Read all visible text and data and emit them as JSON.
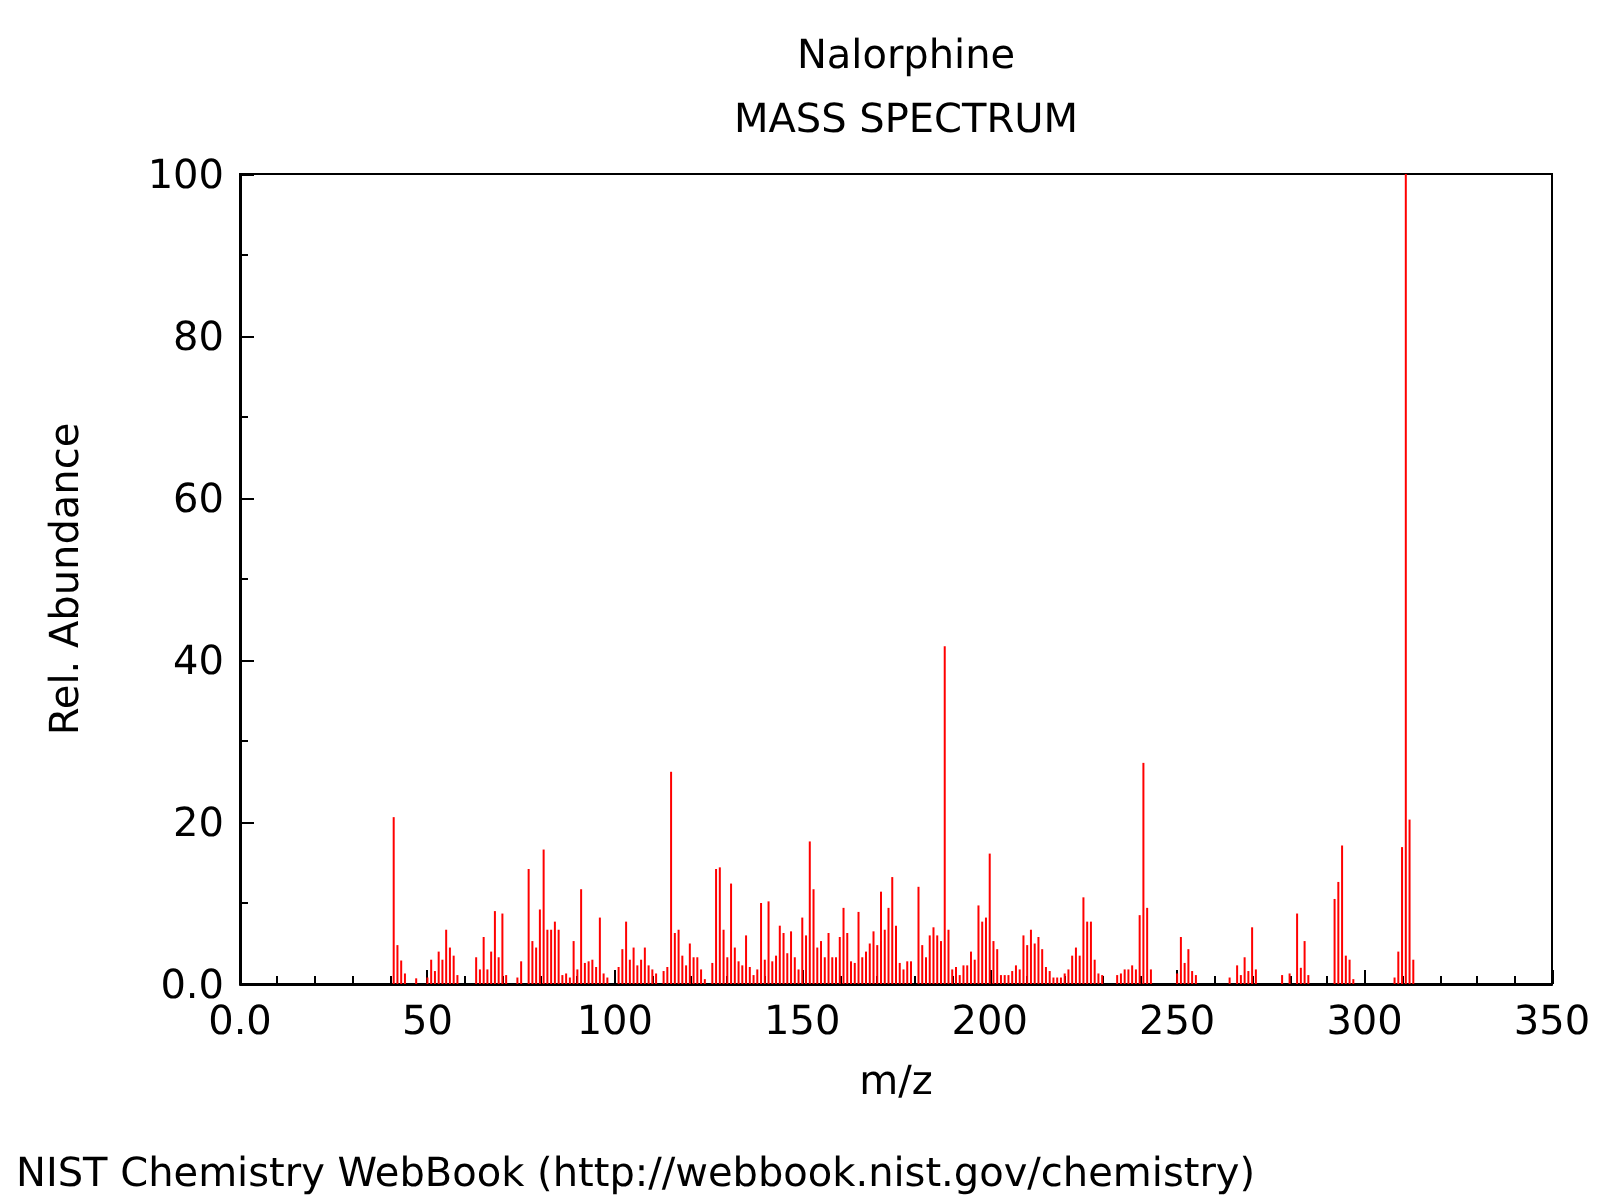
{
  "chart_data": {
    "type": "bar",
    "title": "Nalorphine",
    "subtitle": "MASS SPECTRUM",
    "xlabel": "m/z",
    "ylabel": "Rel. Abundance",
    "annotations": [
      "NIST Chemistry WebBook (http://webbook.nist.gov/chemistry)"
    ],
    "xlim": [
      0,
      350
    ],
    "xticks": [
      {
        "value": 0,
        "label": "0.0"
      },
      50,
      100,
      150,
      200,
      250,
      300,
      350
    ],
    "ylim": [
      0,
      100
    ],
    "yticks": [
      {
        "value": 0,
        "label": "0.0"
      },
      20,
      40,
      60,
      80,
      100
    ],
    "grid": false,
    "x": [
      41,
      42,
      43,
      44,
      47,
      50,
      51,
      52,
      53,
      54,
      55,
      56,
      57,
      58,
      63,
      64,
      65,
      66,
      67,
      68,
      69,
      70,
      71,
      74,
      75,
      77,
      78,
      79,
      80,
      81,
      82,
      83,
      84,
      85,
      86,
      87,
      88,
      89,
      90,
      91,
      92,
      93,
      94,
      95,
      96,
      97,
      98,
      101,
      102,
      103,
      104,
      105,
      106,
      107,
      108,
      109,
      110,
      111,
      113,
      114,
      115,
      116,
      117,
      118,
      119,
      120,
      121,
      122,
      123,
      124,
      126,
      127,
      128,
      129,
      130,
      131,
      132,
      133,
      134,
      135,
      136,
      137,
      138,
      139,
      140,
      141,
      142,
      143,
      144,
      145,
      146,
      147,
      148,
      149,
      150,
      151,
      152,
      153,
      154,
      155,
      156,
      157,
      158,
      159,
      160,
      161,
      162,
      163,
      164,
      165,
      166,
      167,
      168,
      169,
      170,
      171,
      172,
      173,
      174,
      175,
      176,
      177,
      178,
      179,
      181,
      182,
      183,
      184,
      185,
      186,
      187,
      188,
      189,
      190,
      191,
      192,
      193,
      194,
      195,
      196,
      197,
      198,
      199,
      200,
      201,
      202,
      203,
      204,
      205,
      206,
      207,
      208,
      209,
      210,
      211,
      212,
      213,
      214,
      215,
      216,
      217,
      218,
      219,
      220,
      221,
      222,
      223,
      224,
      225,
      226,
      227,
      228,
      229,
      230,
      234,
      235,
      236,
      237,
      238,
      239,
      240,
      241,
      242,
      243,
      250,
      251,
      252,
      253,
      254,
      255,
      264,
      266,
      267,
      268,
      269,
      270,
      271,
      278,
      280,
      282,
      283,
      284,
      285,
      292,
      293,
      294,
      295,
      296,
      297,
      308,
      309,
      310,
      311,
      312,
      313
    ],
    "series": [
      {
        "color": "#ff0000",
        "values": [
          20.6,
          4.8,
          2.9,
          1.3,
          0.7,
          0.8,
          3.0,
          1.6,
          4.0,
          3.0,
          6.7,
          4.5,
          3.5,
          1.1,
          3.3,
          1.8,
          5.8,
          1.8,
          4.0,
          9.0,
          3.3,
          8.7,
          1.1,
          0.8,
          2.8,
          14.2,
          5.3,
          4.5,
          9.2,
          16.6,
          6.7,
          6.7,
          7.7,
          6.7,
          1.1,
          1.3,
          0.8,
          5.3,
          1.8,
          11.7,
          2.6,
          2.8,
          3.0,
          2.1,
          8.2,
          1.3,
          0.8,
          2.1,
          4.3,
          7.7,
          3.0,
          4.5,
          2.3,
          3.0,
          4.5,
          2.3,
          1.8,
          1.3,
          1.6,
          2.1,
          26.2,
          6.3,
          6.7,
          3.5,
          2.3,
          5.0,
          3.3,
          3.3,
          1.8,
          0.6,
          2.6,
          14.2,
          14.4,
          6.7,
          3.3,
          12.4,
          4.5,
          2.8,
          2.3,
          6.0,
          2.1,
          1.1,
          1.8,
          10.0,
          3.0,
          10.2,
          2.8,
          3.5,
          7.2,
          6.3,
          3.8,
          6.5,
          3.3,
          1.8,
          8.2,
          6.0,
          17.6,
          11.7,
          4.5,
          5.3,
          3.3,
          6.3,
          3.3,
          3.3,
          5.8,
          9.4,
          6.3,
          2.8,
          2.6,
          8.9,
          3.3,
          4.0,
          5.0,
          6.5,
          4.8,
          11.4,
          6.7,
          9.4,
          13.2,
          7.2,
          2.6,
          1.8,
          2.8,
          2.8,
          12.0,
          4.8,
          3.3,
          6.0,
          7.0,
          6.0,
          5.3,
          41.7,
          6.7,
          1.8,
          2.1,
          1.1,
          2.3,
          2.3,
          4.0,
          3.0,
          9.7,
          7.7,
          8.2,
          16.1,
          5.3,
          4.3,
          1.1,
          1.1,
          1.1,
          1.6,
          2.3,
          1.8,
          6.0,
          4.8,
          6.7,
          5.0,
          5.8,
          4.3,
          2.1,
          1.6,
          0.8,
          0.8,
          0.8,
          1.3,
          1.8,
          3.5,
          4.5,
          3.5,
          10.7,
          7.7,
          7.7,
          3.0,
          1.3,
          1.1,
          1.1,
          1.3,
          1.8,
          1.8,
          2.3,
          1.8,
          8.5,
          27.3,
          9.4,
          1.8,
          1.3,
          5.8,
          2.6,
          4.3,
          1.6,
          1.1,
          0.8,
          2.3,
          1.1,
          3.3,
          1.6,
          7.0,
          1.8,
          1.1,
          1.3,
          8.7,
          2.0,
          5.3,
          1.1,
          10.5,
          12.6,
          17.1,
          3.5,
          3.0,
          0.6,
          0.8,
          4.0,
          16.9,
          100,
          20.3,
          3.0
        ]
      }
    ]
  }
}
